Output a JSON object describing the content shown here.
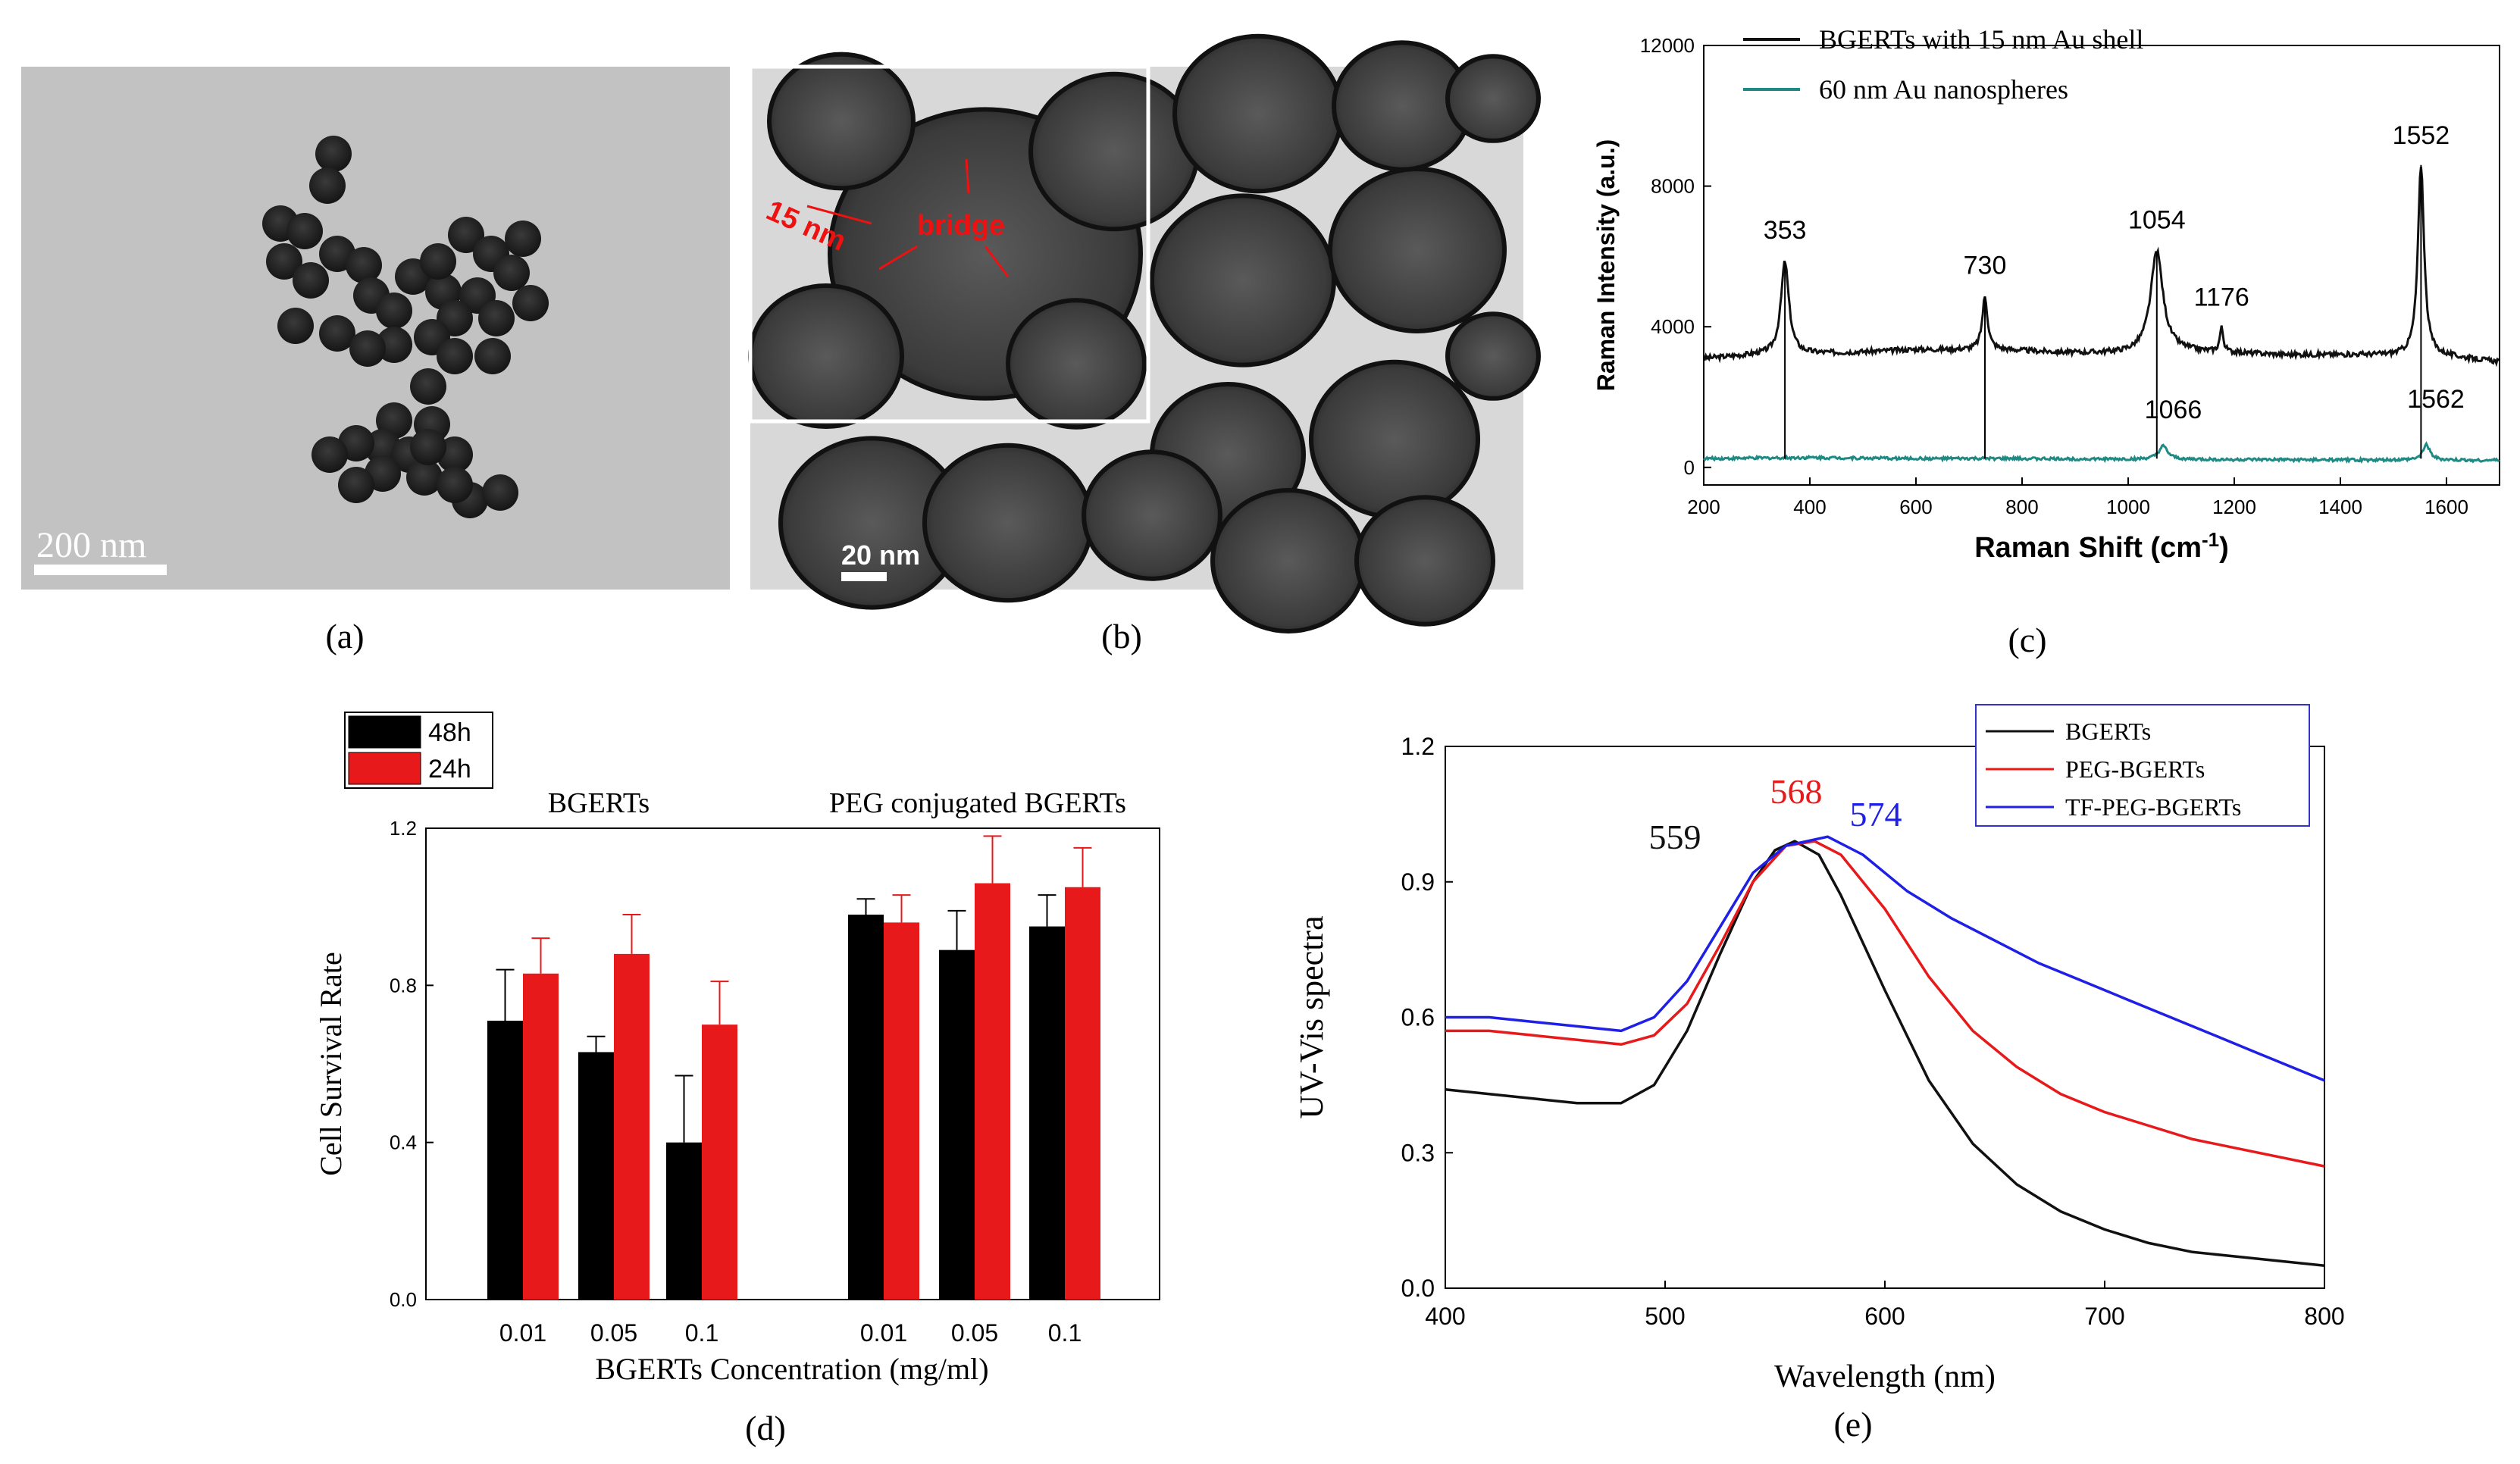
{
  "panels": {
    "a": {
      "label": "(a)",
      "scale_bar": "200 nm"
    },
    "b": {
      "label": "(b)",
      "scale_bar": "20 nm",
      "annotation_thickness": "15 nm",
      "annotation_bridge": "bridge"
    },
    "c": {
      "label": "(c)"
    },
    "d": {
      "label": "(d)"
    },
    "e": {
      "label": "(e)"
    }
  },
  "colors": {
    "black_series": "#111111",
    "teal_series": "#1f8a84",
    "red_series": "#e8191a",
    "blue_series": "#1f1fe6",
    "tem_bg_a": "#c2c2c2",
    "tem_bg_b": "#d8d8d8",
    "annotation_red": "#ee1111"
  },
  "chart_data": [
    {
      "id": "c",
      "type": "line",
      "title": "",
      "xlabel": "Raman Shift (cm",
      "xlabel_sup": "-1",
      "xlabel_end": ")",
      "ylabel": "Raman Intensity (a.u.)",
      "xlim": [
        200,
        1700
      ],
      "ylim": [
        -500,
        12000
      ],
      "x_ticks": [
        200,
        400,
        600,
        800,
        1000,
        1200,
        1400,
        1600
      ],
      "y_ticks": [
        0,
        4000,
        8000,
        12000
      ],
      "legend": [
        {
          "name": "BGERTs with 15 nm Au shell",
          "color": "#111111"
        },
        {
          "name": "60 nm Au nanospheres",
          "color": "#1f8a84"
        }
      ],
      "series": [
        {
          "name": "BGERTs with 15 nm Au shell",
          "baseline": [
            [
              200,
              3100
            ],
            [
              300,
              3200
            ],
            [
              450,
              3250
            ],
            [
              600,
              3350
            ],
            [
              750,
              3350
            ],
            [
              900,
              3250
            ],
            [
              1000,
              3250
            ],
            [
              1100,
              3300
            ],
            [
              1300,
              3200
            ],
            [
              1450,
              3200
            ],
            [
              1600,
              3150
            ],
            [
              1700,
              3000
            ]
          ],
          "peaks": [
            [
              353,
              5850,
              9
            ],
            [
              730,
              4850,
              6
            ],
            [
              1054,
              6150,
              14
            ],
            [
              1176,
              3950,
              4
            ],
            [
              1552,
              8600,
              7
            ]
          ]
        },
        {
          "name": "60 nm Au nanospheres",
          "baseline": [
            [
              200,
              250
            ],
            [
              400,
              280
            ],
            [
              600,
              250
            ],
            [
              800,
              250
            ],
            [
              1000,
              230
            ],
            [
              1200,
              220
            ],
            [
              1400,
              210
            ],
            [
              1700,
              200
            ]
          ],
          "peaks": [
            [
              1066,
              600,
              10
            ],
            [
              1562,
              650,
              8
            ]
          ]
        }
      ],
      "peak_labels": [
        {
          "text": "353",
          "x": 353,
          "y": 6500
        },
        {
          "text": "730",
          "x": 730,
          "y": 5500
        },
        {
          "text": "1054",
          "x": 1054,
          "y": 6800
        },
        {
          "text": "1176",
          "x": 1176,
          "y": 4600
        },
        {
          "text": "1552",
          "x": 1552,
          "y": 9200
        },
        {
          "text": "1066",
          "x": 1085,
          "y": 1400
        },
        {
          "text": "1562",
          "x": 1580,
          "y": 1700
        }
      ],
      "drop_lines": [
        [
          353,
          5850
        ],
        [
          730,
          4850
        ],
        [
          1054,
          6150
        ],
        [
          1552,
          8600
        ]
      ]
    },
    {
      "id": "d",
      "type": "bar",
      "xlabel": "BGERTs Concentration (mg/ml)",
      "ylabel": "Cell Survival Rate",
      "ylim": [
        0,
        1.2
      ],
      "y_ticks": [
        "0.0",
        "0.4",
        "0.8",
        "1.2"
      ],
      "group_titles": [
        "BGERTs",
        "PEG conjugated BGERTs"
      ],
      "categories": [
        "0.01",
        "0.05",
        "0.1",
        "0.01",
        "0.05",
        "0.1"
      ],
      "legend": [
        {
          "name": "48h",
          "color": "#000000"
        },
        {
          "name": "24h",
          "color": "#e8191a"
        }
      ],
      "series": [
        {
          "name": "48h",
          "values": [
            0.71,
            0.63,
            0.4,
            0.98,
            0.89,
            0.95
          ],
          "errors": [
            0.13,
            0.04,
            0.17,
            0.04,
            0.1,
            0.08
          ]
        },
        {
          "name": "24h",
          "values": [
            0.83,
            0.88,
            0.7,
            0.96,
            1.06,
            1.05
          ],
          "errors": [
            0.09,
            0.1,
            0.11,
            0.07,
            0.12,
            0.1
          ]
        }
      ]
    },
    {
      "id": "e",
      "type": "line",
      "xlabel": "Wavelength (nm)",
      "ylabel": "UV-Vis spectra",
      "xlim": [
        400,
        800
      ],
      "ylim": [
        0,
        1.2
      ],
      "x_ticks": [
        400,
        500,
        600,
        700,
        800
      ],
      "y_ticks": [
        "0.0",
        "0.3",
        "0.6",
        "0.9",
        "1.2"
      ],
      "legend": [
        {
          "name": "BGERTs",
          "color": "#111111"
        },
        {
          "name": "PEG-BGERTs",
          "color": "#e8191a"
        },
        {
          "name": "TF-PEG-BGERTs",
          "color": "#1f1fe6"
        }
      ],
      "series": [
        {
          "name": "BGERTs",
          "x": [
            400,
            420,
            440,
            460,
            480,
            495,
            510,
            525,
            540,
            550,
            559,
            570,
            580,
            600,
            620,
            640,
            660,
            680,
            700,
            720,
            740,
            760,
            780,
            800
          ],
          "y": [
            0.44,
            0.43,
            0.42,
            0.41,
            0.41,
            0.45,
            0.57,
            0.74,
            0.9,
            0.97,
            0.99,
            0.96,
            0.87,
            0.66,
            0.46,
            0.32,
            0.23,
            0.17,
            0.13,
            0.1,
            0.08,
            0.07,
            0.06,
            0.05
          ]
        },
        {
          "name": "PEG-BGERTs",
          "x": [
            400,
            420,
            440,
            460,
            480,
            495,
            510,
            525,
            540,
            555,
            568,
            580,
            600,
            620,
            640,
            660,
            680,
            700,
            720,
            740,
            760,
            780,
            800
          ],
          "y": [
            0.57,
            0.57,
            0.56,
            0.55,
            0.54,
            0.56,
            0.63,
            0.76,
            0.9,
            0.98,
            0.99,
            0.96,
            0.84,
            0.69,
            0.57,
            0.49,
            0.43,
            0.39,
            0.36,
            0.33,
            0.31,
            0.29,
            0.27
          ]
        },
        {
          "name": "TF-PEG-BGERTs",
          "x": [
            400,
            420,
            440,
            460,
            480,
            495,
            510,
            525,
            540,
            555,
            574,
            590,
            610,
            630,
            650,
            670,
            690,
            710,
            730,
            750,
            770,
            790,
            800
          ],
          "y": [
            0.6,
            0.6,
            0.59,
            0.58,
            0.57,
            0.6,
            0.68,
            0.8,
            0.92,
            0.98,
            1.0,
            0.96,
            0.88,
            0.82,
            0.77,
            0.72,
            0.68,
            0.64,
            0.6,
            0.56,
            0.52,
            0.48,
            0.46
          ]
        }
      ],
      "peak_labels": [
        {
          "text": "559",
          "color": "#111111"
        },
        {
          "text": "568",
          "color": "#e8191a"
        },
        {
          "text": "574",
          "color": "#1f1fe6"
        }
      ]
    }
  ]
}
